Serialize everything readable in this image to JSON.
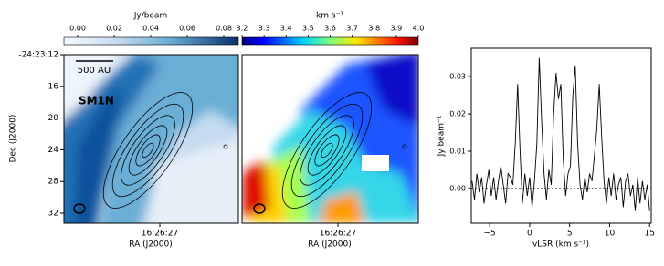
{
  "chart_data": [
    {
      "type": "image",
      "colorbar": {
        "label": "Jy/beam",
        "lim": [
          -0.0075,
          0.088
        ],
        "ticks": [
          {
            "value": 0,
            "label": "0.00"
          },
          0.02,
          0.04,
          0.06,
          0.08
        ]
      },
      "ylabel": "Dec (J2000)",
      "xlabel": "RA (J2000)",
      "dec_labels": [
        "-24:23:12",
        "16",
        "20",
        "24",
        "28",
        "32"
      ],
      "ra_labels": [
        "16:26:27"
      ],
      "annotations": [
        "500 AU",
        "SM1N"
      ]
    },
    {
      "type": "image",
      "colorbar": {
        "label": "km s⁻¹",
        "lim": [
          3.2,
          4.0
        ],
        "ticks": [
          3.2,
          3.3,
          3.4,
          3.5,
          3.6,
          3.7,
          3.8,
          3.9,
          {
            "value": 4.0,
            "label": "4.0"
          }
        ]
      },
      "xlabel": "RA (J2000)",
      "ra_labels": [
        "16:26:27"
      ]
    },
    {
      "type": "line",
      "xlabel": "vLSR (km s⁻¹)",
      "ylabel": "Jy beam⁻¹",
      "xlim": [
        -7.3,
        15.2
      ],
      "ylim": [
        -0.0093,
        0.0376
      ],
      "xticks": [
        -5,
        0,
        5,
        10,
        15
      ],
      "yticks": [
        {
          "value": 0,
          "label": "0.00"
        },
        0.01,
        0.02,
        0.03
      ],
      "x": [
        -7.2,
        -6.9,
        -6.6,
        -6.3,
        -6.0,
        -5.7,
        -5.4,
        -5.1,
        -4.8,
        -4.5,
        -4.2,
        -3.9,
        -3.6,
        -3.3,
        -3.0,
        -2.7,
        -2.4,
        -2.1,
        -1.8,
        -1.5,
        -1.2,
        -0.9,
        -0.6,
        -0.3,
        0.0,
        0.3,
        0.6,
        0.9,
        1.2,
        1.5,
        1.8,
        2.1,
        2.4,
        2.7,
        3.0,
        3.3,
        3.6,
        3.9,
        4.2,
        4.5,
        4.8,
        5.1,
        5.4,
        5.7,
        6.0,
        6.3,
        6.6,
        6.9,
        7.2,
        7.5,
        7.8,
        8.1,
        8.4,
        8.7,
        9.0,
        9.3,
        9.6,
        9.9,
        10.2,
        10.5,
        10.8,
        11.1,
        11.4,
        11.7,
        12.0,
        12.3,
        12.6,
        12.9,
        13.2,
        13.5,
        13.8,
        14.1,
        14.4,
        14.7,
        15.0
      ],
      "series": [
        {
          "color": "#000000",
          "values": [
            0.002,
            -0.003,
            0.004,
            -0.001,
            0.003,
            -0.004,
            0.001,
            0.005,
            -0.002,
            0.003,
            -0.003,
            0.002,
            0.006,
            0.001,
            -0.004,
            0.004,
            0.003,
            0.001,
            0.012,
            0.028,
            0.01,
            -0.004,
            0.004,
            -0.002,
            0.003,
            -0.005,
            0.002,
            0.012,
            0.035,
            0.018,
            0.004,
            -0.003,
            0.005,
            0.001,
            0.02,
            0.031,
            0.024,
            0.028,
            0.008,
            -0.002,
            0.004,
            0.006,
            0.025,
            0.033,
            0.012,
            0.001,
            -0.003,
            0.003,
            -0.001,
            0.004,
            0.002,
            0.009,
            0.016,
            0.028,
            0.014,
            0.002,
            -0.004,
            0.003,
            -0.002,
            0.004,
            -0.003,
            0.001,
            0.003,
            -0.005,
            0.002,
            0.004,
            -0.002,
            0.001,
            -0.006,
            0.003,
            -0.004,
            0.002,
            -0.003,
            0.001,
            -0.006
          ]
        }
      ]
    }
  ]
}
